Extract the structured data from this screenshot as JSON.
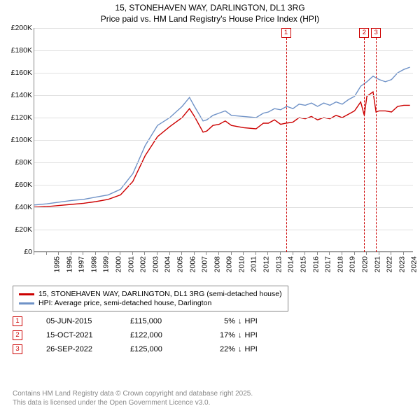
{
  "title_line1": "15, STONEHAVEN WAY, DARLINGTON, DL1 3RG",
  "title_line2": "Price paid vs. HM Land Registry's House Price Index (HPI)",
  "chart": {
    "type": "line",
    "background_color": "#ffffff",
    "grid_color": "#e0e0e0",
    "axis_color": "#888888",
    "xlim": [
      1995,
      2025.8
    ],
    "ylim": [
      0,
      200000
    ],
    "ytick_step": 20000,
    "yticks": [
      "£0",
      "£20K",
      "£40K",
      "£60K",
      "£80K",
      "£100K",
      "£120K",
      "£140K",
      "£160K",
      "£180K",
      "£200K"
    ],
    "xticks": [
      1995,
      1996,
      1997,
      1998,
      1999,
      2000,
      2001,
      2002,
      2003,
      2004,
      2005,
      2006,
      2007,
      2008,
      2009,
      2010,
      2011,
      2012,
      2013,
      2014,
      2015,
      2016,
      2017,
      2018,
      2019,
      2020,
      2021,
      2022,
      2023,
      2024,
      2025
    ],
    "title_fontsize": 12,
    "label_fontsize": 10.5,
    "series": [
      {
        "name": "hpi",
        "color": "#6f92c7",
        "width": 1.4,
        "points": [
          [
            1995,
            42000
          ],
          [
            1996,
            43000
          ],
          [
            1997,
            44500
          ],
          [
            1998,
            46000
          ],
          [
            1999,
            47000
          ],
          [
            2000,
            49000
          ],
          [
            2001,
            51000
          ],
          [
            2002,
            56000
          ],
          [
            2003,
            70000
          ],
          [
            2004,
            95000
          ],
          [
            2005,
            113000
          ],
          [
            2006,
            120000
          ],
          [
            2007,
            130000
          ],
          [
            2007.6,
            138000
          ],
          [
            2008,
            130000
          ],
          [
            2008.7,
            117000
          ],
          [
            2009,
            118000
          ],
          [
            2009.5,
            122000
          ],
          [
            2010,
            124000
          ],
          [
            2010.5,
            126000
          ],
          [
            2011,
            122000
          ],
          [
            2012,
            121000
          ],
          [
            2013,
            120000
          ],
          [
            2013.6,
            124000
          ],
          [
            2014,
            125000
          ],
          [
            2014.5,
            128000
          ],
          [
            2015,
            127000
          ],
          [
            2015.5,
            130000
          ],
          [
            2016,
            128000
          ],
          [
            2016.5,
            132000
          ],
          [
            2017,
            131000
          ],
          [
            2017.5,
            133000
          ],
          [
            2018,
            130000
          ],
          [
            2018.5,
            133000
          ],
          [
            2019,
            131000
          ],
          [
            2019.5,
            134000
          ],
          [
            2020,
            132000
          ],
          [
            2020.5,
            136000
          ],
          [
            2021,
            139000
          ],
          [
            2021.5,
            148000
          ],
          [
            2022,
            152000
          ],
          [
            2022.5,
            157000
          ],
          [
            2023,
            154000
          ],
          [
            2023.5,
            152000
          ],
          [
            2024,
            154000
          ],
          [
            2024.5,
            160000
          ],
          [
            2025,
            163000
          ],
          [
            2025.5,
            165000
          ]
        ]
      },
      {
        "name": "price_paid",
        "color": "#cc0000",
        "width": 1.4,
        "points": [
          [
            1995,
            40000
          ],
          [
            1996,
            40500
          ],
          [
            1997,
            41500
          ],
          [
            1998,
            42500
          ],
          [
            1999,
            43500
          ],
          [
            2000,
            45000
          ],
          [
            2001,
            47000
          ],
          [
            2002,
            51000
          ],
          [
            2003,
            63000
          ],
          [
            2004,
            86000
          ],
          [
            2005,
            103000
          ],
          [
            2006,
            112000
          ],
          [
            2007,
            120000
          ],
          [
            2007.6,
            128000
          ],
          [
            2008,
            121000
          ],
          [
            2008.7,
            107000
          ],
          [
            2009,
            108000
          ],
          [
            2009.5,
            113000
          ],
          [
            2010,
            114000
          ],
          [
            2010.5,
            117000
          ],
          [
            2011,
            113000
          ],
          [
            2012,
            111000
          ],
          [
            2013,
            110000
          ],
          [
            2013.6,
            115000
          ],
          [
            2014,
            115000
          ],
          [
            2014.5,
            118000
          ],
          [
            2015,
            114000
          ],
          [
            2015.43,
            115000
          ],
          [
            2016,
            116000
          ],
          [
            2016.5,
            120000
          ],
          [
            2017,
            119000
          ],
          [
            2017.5,
            121000
          ],
          [
            2018,
            118000
          ],
          [
            2018.5,
            120000
          ],
          [
            2019,
            119000
          ],
          [
            2019.5,
            122000
          ],
          [
            2020,
            120000
          ],
          [
            2020.5,
            123000
          ],
          [
            2021,
            126000
          ],
          [
            2021.5,
            134000
          ],
          [
            2021.79,
            122000
          ],
          [
            2022,
            139000
          ],
          [
            2022.5,
            143000
          ],
          [
            2022.74,
            125000
          ],
          [
            2023,
            126000
          ],
          [
            2023.5,
            126000
          ],
          [
            2024,
            125000
          ],
          [
            2024.5,
            130000
          ],
          [
            2025,
            131000
          ],
          [
            2025.5,
            131000
          ]
        ]
      }
    ],
    "markers": [
      {
        "num": "1",
        "x": 2015.43
      },
      {
        "num": "2",
        "x": 2021.79
      },
      {
        "num": "3",
        "x": 2022.74
      }
    ]
  },
  "legend": {
    "items": [
      {
        "color": "#cc0000",
        "label": "15, STONEHAVEN WAY, DARLINGTON, DL1 3RG (semi-detached house)"
      },
      {
        "color": "#6f92c7",
        "label": "HPI: Average price, semi-detached house, Darlington"
      }
    ]
  },
  "sales": [
    {
      "num": "1",
      "date": "05-JUN-2015",
      "price": "£115,000",
      "pct": "5%",
      "arrow": "↓",
      "label": "HPI"
    },
    {
      "num": "2",
      "date": "15-OCT-2021",
      "price": "£122,000",
      "pct": "17%",
      "arrow": "↓",
      "label": "HPI"
    },
    {
      "num": "3",
      "date": "26-SEP-2022",
      "price": "£125,000",
      "pct": "22%",
      "arrow": "↓",
      "label": "HPI"
    }
  ],
  "footer_line1": "Contains HM Land Registry data © Crown copyright and database right 2025.",
  "footer_line2": "This data is licensed under the Open Government Licence v3.0.",
  "colors": {
    "marker_border": "#cc0000",
    "footer_text": "#888888"
  }
}
